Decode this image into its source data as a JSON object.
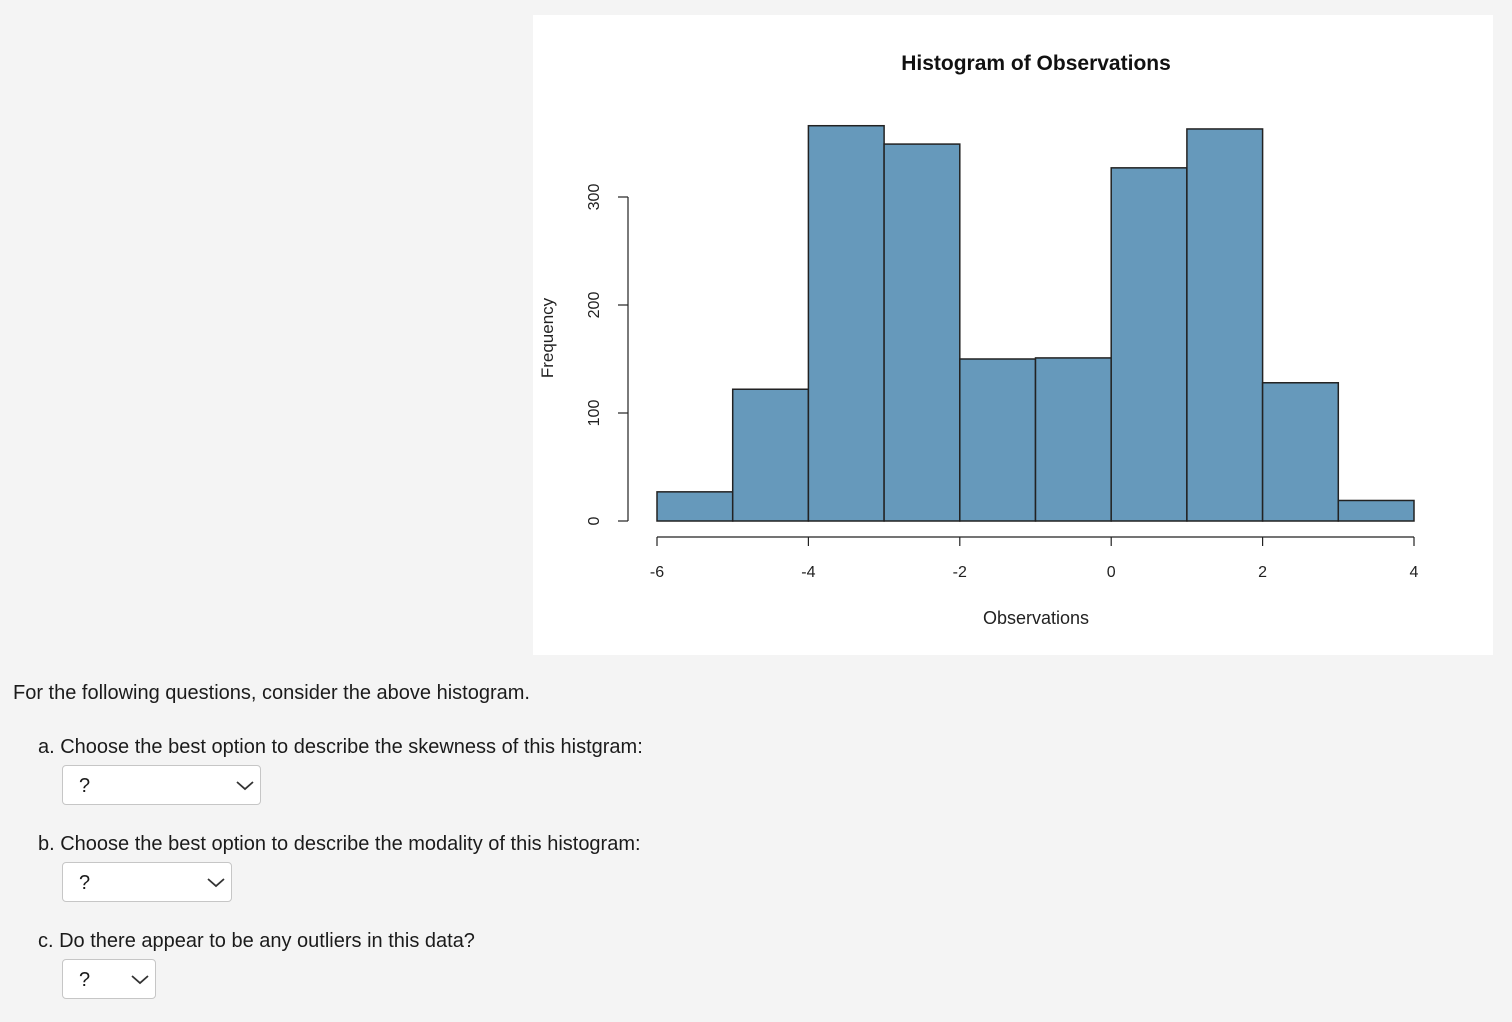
{
  "chart_data": {
    "type": "bar",
    "title": "Histogram of Observations",
    "xlabel": "Observations",
    "ylabel": "Frequency",
    "bin_edges": [
      -6,
      -5,
      -4,
      -3,
      -2,
      -1,
      0,
      1,
      2,
      3,
      4
    ],
    "values": [
      27,
      122,
      366,
      349,
      150,
      151,
      327,
      363,
      128,
      19
    ],
    "xlim": [
      -6,
      4
    ],
    "ylim": [
      0,
      366
    ],
    "x_ticks": [
      -6,
      -4,
      -2,
      0,
      2,
      4
    ],
    "y_ticks": [
      0,
      100,
      200,
      300
    ],
    "bar_color": "#6699bb",
    "grid": false
  },
  "intro": "For the following questions, consider the above histogram.",
  "questions": [
    {
      "label": "a. Choose the best option to describe the skewness of this histgram:",
      "selected": "?"
    },
    {
      "label": "b. Choose the best option to describe the modality of this histogram:",
      "selected": "?"
    },
    {
      "label": "c. Do there appear to be any outliers in this data?",
      "selected": "?"
    }
  ],
  "colors": {
    "page_background": "#f4f4f4",
    "chart_background": "#ffffff",
    "bar_fill": "#6699bb"
  }
}
